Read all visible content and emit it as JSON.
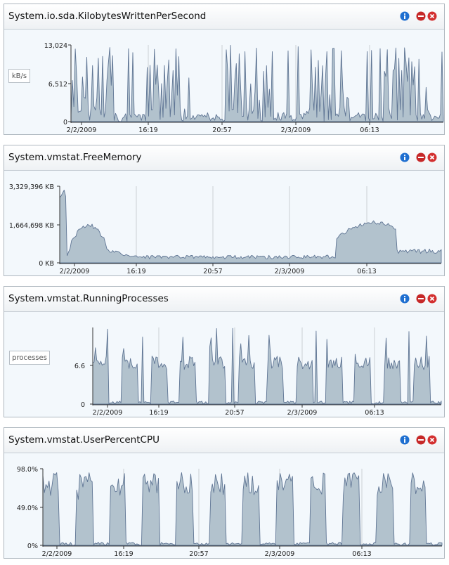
{
  "colors": {
    "fill": "#b2c2cd",
    "line": "#5f7594",
    "grid": "#dfe4e8",
    "bg": "#f3f8fc",
    "info": "#1f6fd0",
    "remove": "#c62828",
    "close": "#d32f2f"
  },
  "panels": [
    {
      "title": "System.io.sda.KilobytesWrittenPerSecond",
      "unit_label": "kB/s",
      "icons": [
        "info-icon",
        "minus-circle-icon",
        "close-circle-icon"
      ],
      "chart_data": {
        "type": "area",
        "yticks": [
          "13,024",
          "6,512",
          "0"
        ],
        "ylim": [
          0,
          13024
        ],
        "xticks": [
          "2/2/2009",
          "16:19",
          "20:57",
          "2/3/2009",
          "06:13"
        ],
        "profile": "io_writes",
        "grid": true
      }
    },
    {
      "title": "System.vmstat.FreeMemory",
      "unit_label": "",
      "icons": [
        "info-icon",
        "minus-circle-icon",
        "close-circle-icon"
      ],
      "chart_data": {
        "type": "area",
        "yticks": [
          "3,329,396 KB",
          "1,664,698 KB",
          "0 KB"
        ],
        "ylim": [
          0,
          3329396
        ],
        "xticks": [
          "2/2/2009",
          "16:19",
          "20:57",
          "2/3/2009",
          "06:13"
        ],
        "profile": "free_memory",
        "grid": true
      }
    },
    {
      "title": "System.vmstat.RunningProcesses",
      "unit_label": "processes",
      "icons": [
        "info-icon",
        "minus-circle-icon",
        "close-circle-icon"
      ],
      "chart_data": {
        "type": "area",
        "yticks": [
          "6.6",
          "0"
        ],
        "ylim": [
          0,
          13.2
        ],
        "xticks": [
          "2/2/2009",
          "16:19",
          "20:57",
          "2/3/2009",
          "06:13"
        ],
        "profile": "running_processes",
        "grid": true
      }
    },
    {
      "title": "System.vmstat.UserPercentCPU",
      "unit_label": "",
      "icons": [
        "info-icon",
        "minus-circle-icon",
        "close-circle-icon"
      ],
      "chart_data": {
        "type": "area",
        "yticks": [
          "98.0%",
          "49.0%",
          "0%"
        ],
        "ylim": [
          0,
          98
        ],
        "xticks": [
          "2/2/2009",
          "16:19",
          "20:57",
          "2/3/2009",
          "06:13"
        ],
        "profile": "user_cpu",
        "grid": true
      }
    }
  ]
}
